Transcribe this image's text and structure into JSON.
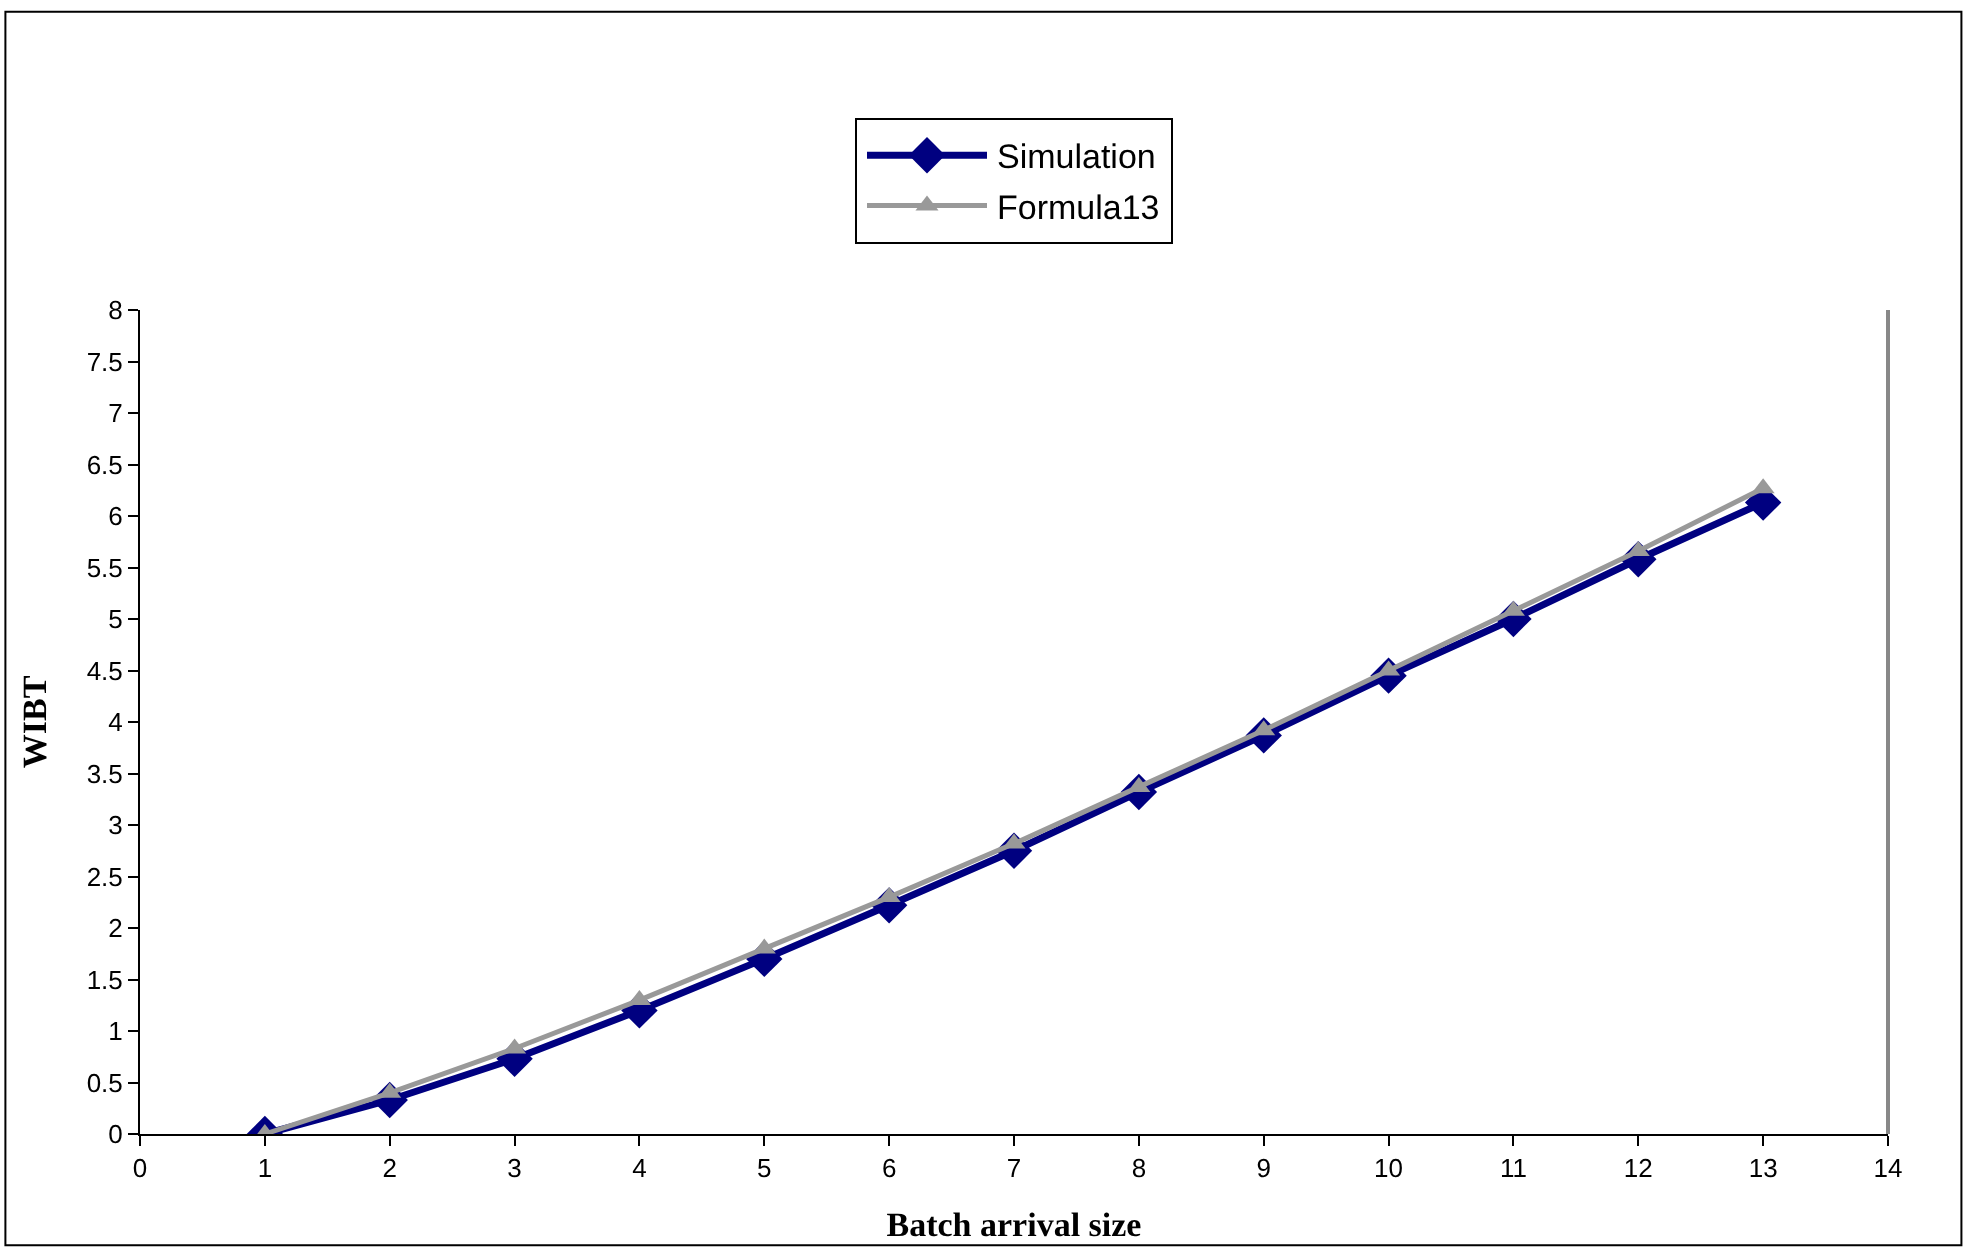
{
  "chart_data": {
    "type": "line",
    "xlabel": "Batch arrival size",
    "ylabel": "WIBT",
    "x": [
      1,
      2,
      3,
      4,
      5,
      6,
      7,
      8,
      9,
      10,
      11,
      12,
      13
    ],
    "series": [
      {
        "name": "Simulation",
        "color": "#000080",
        "marker": "diamond",
        "values": [
          0,
          0.33,
          0.73,
          1.2,
          1.7,
          2.22,
          2.75,
          3.32,
          3.87,
          4.45,
          5.0,
          5.58,
          6.13
        ]
      },
      {
        "name": "Formula13",
        "color": "#999999",
        "marker": "triangle",
        "values": [
          0,
          0.4,
          0.83,
          1.3,
          1.8,
          2.3,
          2.82,
          3.37,
          3.92,
          4.5,
          5.08,
          5.66,
          6.27
        ]
      }
    ],
    "xlim": [
      0,
      14
    ],
    "xticks": [
      0,
      1,
      2,
      3,
      4,
      5,
      6,
      7,
      8,
      9,
      10,
      11,
      12,
      13,
      14
    ],
    "ylim": [
      0,
      8
    ],
    "yticks": [
      0,
      0.5,
      1,
      1.5,
      2,
      2.5,
      3,
      3.5,
      4,
      4.5,
      5,
      5.5,
      6,
      6.5,
      7,
      7.5,
      8
    ],
    "legend": "top",
    "line_style": "solid"
  }
}
